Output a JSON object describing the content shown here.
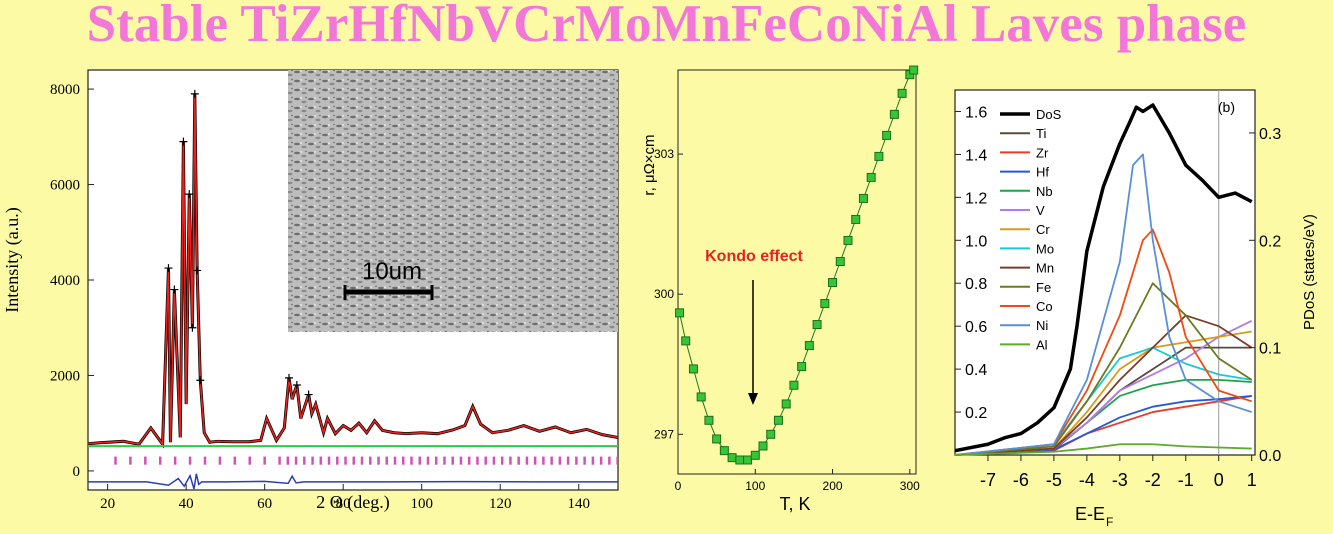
{
  "title": "Stable TiZrHfNbVCrMoMnFeCoNiAl Laves phase",
  "chart_data": [
    {
      "type": "line",
      "xlabel": "2 Θ (deg.)",
      "ylabel": "Intensity (a.u.)",
      "xlim": [
        15,
        150
      ],
      "ylim": [
        -400,
        8400
      ],
      "xticks": [
        "20",
        "40",
        "60",
        "80",
        "100",
        "120",
        "140"
      ],
      "yticks": [
        "0",
        "2000",
        "4000",
        "6000",
        "8000"
      ],
      "inset_scale_label": "10um",
      "series": [
        {
          "kind": "observed-calculated",
          "x": [
            15,
            18,
            24,
            28,
            31,
            34,
            35.5,
            36,
            37,
            38.5,
            39.3,
            40,
            40.8,
            41.6,
            42.2,
            42.8,
            43.6,
            44.6,
            46,
            48,
            52,
            56,
            59,
            60.5,
            63,
            65,
            66.2,
            67,
            68.2,
            69.2,
            71.2,
            72,
            73,
            75,
            76,
            78,
            80,
            82,
            84,
            86,
            88,
            90,
            93,
            96,
            100,
            104,
            108,
            111,
            113,
            115,
            118,
            122,
            126,
            130,
            134,
            138,
            142,
            146,
            150
          ],
          "y": [
            570,
            590,
            620,
            560,
            900,
            560,
            4250,
            600,
            3800,
            700,
            6900,
            1400,
            5800,
            3000,
            7900,
            4200,
            1900,
            800,
            600,
            620,
            610,
            610,
            640,
            1100,
            640,
            900,
            1950,
            1500,
            1800,
            1100,
            1600,
            1200,
            1400,
            800,
            1100,
            780,
            950,
            850,
            1000,
            800,
            1050,
            850,
            800,
            780,
            800,
            780,
            860,
            950,
            1350,
            980,
            800,
            850,
            950,
            830,
            920,
            800,
            870,
            760,
            700
          ]
        },
        {
          "kind": "difference",
          "x": [
            15,
            30,
            35.5,
            38,
            39.5,
            41,
            42,
            42.6,
            43.2,
            44,
            50,
            60,
            66,
            67,
            68,
            70,
            90,
            110,
            130,
            150
          ],
          "y": [
            -230,
            -230,
            -300,
            -160,
            -320,
            -100,
            -380,
            -60,
            -280,
            -230,
            -230,
            -220,
            -260,
            -110,
            -250,
            -230,
            -230,
            -225,
            -230,
            -230
          ]
        }
      ]
    },
    {
      "type": "scatter",
      "xlabel": "T, K",
      "ylabel": "r, μΩ×cm",
      "xlim": [
        0,
        308
      ],
      "ylim": [
        296.15,
        304.8
      ],
      "xticks": [
        "0",
        "100",
        "200",
        "300"
      ],
      "yticks": [
        "297",
        "300",
        "303"
      ],
      "annotation": "Kondo effect",
      "annotation_color": "#e8231e",
      "marker_color": "#35c535",
      "series": [
        {
          "x": [
            2,
            10,
            20,
            30,
            40,
            50,
            60,
            70,
            80,
            90,
            100,
            110,
            120,
            130,
            140,
            150,
            160,
            170,
            180,
            190,
            200,
            210,
            220,
            230,
            240,
            250,
            260,
            270,
            280,
            290,
            300,
            305
          ],
          "y": [
            299.6,
            299.0,
            298.4,
            297.8,
            297.3,
            296.9,
            296.65,
            296.5,
            296.45,
            296.45,
            296.55,
            296.75,
            297.0,
            297.3,
            297.65,
            298.05,
            298.45,
            298.9,
            299.35,
            299.8,
            300.25,
            300.7,
            301.15,
            301.6,
            302.05,
            302.5,
            302.95,
            303.4,
            303.85,
            304.3,
            304.7,
            304.8
          ]
        }
      ]
    },
    {
      "type": "line",
      "xlabel": "E-E",
      "xlabel_sub": "F",
      "ylabel_right": "PDoS (states/eV)",
      "panel_label": "(b)",
      "xlim": [
        -8,
        1.1
      ],
      "ylim_left": [
        0,
        1.7
      ],
      "ylim_right": [
        0,
        0.34
      ],
      "xticks": [
        "-7",
        "-6",
        "-5",
        "-4",
        "-3",
        "-2",
        "-1",
        "0",
        "1"
      ],
      "yticks_left": [
        "0.2",
        "0.4",
        "0.6",
        "0.8",
        "1.0",
        "1.2",
        "1.4",
        "1.6"
      ],
      "yticks_right": [
        "0.0",
        "0.1",
        "0.2",
        "0.3"
      ],
      "series": [
        {
          "name": "DoS",
          "color": "#000000",
          "axis": "left",
          "x": [
            -8,
            -7,
            -6.5,
            -6,
            -5.5,
            -5,
            -4.5,
            -4.3,
            -4,
            -3.5,
            -3,
            -2.7,
            -2.5,
            -2.3,
            -2,
            -1.5,
            -1,
            -0.5,
            0,
            0.5,
            1
          ],
          "y": [
            0.02,
            0.05,
            0.08,
            0.1,
            0.15,
            0.22,
            0.4,
            0.6,
            0.95,
            1.25,
            1.45,
            1.55,
            1.62,
            1.6,
            1.63,
            1.5,
            1.35,
            1.28,
            1.2,
            1.22,
            1.18
          ]
        },
        {
          "name": "Ti",
          "color": "#5a4a3a",
          "axis": "right",
          "x": [
            -8,
            -5,
            -4,
            -3,
            -2,
            -1,
            0,
            1
          ],
          "y": [
            0,
            0.005,
            0.03,
            0.06,
            0.08,
            0.1,
            0.1,
            0.1
          ]
        },
        {
          "name": "Zr",
          "color": "#ec3a2a",
          "axis": "right",
          "x": [
            -8,
            -5,
            -4,
            -3,
            -2,
            -1,
            0,
            1
          ],
          "y": [
            0,
            0.004,
            0.02,
            0.03,
            0.04,
            0.045,
            0.05,
            0.055
          ]
        },
        {
          "name": "Hf",
          "color": "#2459d8",
          "axis": "right",
          "x": [
            -8,
            -5,
            -4,
            -3,
            -2,
            -1,
            0,
            1
          ],
          "y": [
            0,
            0.005,
            0.02,
            0.035,
            0.045,
            0.05,
            0.052,
            0.055
          ]
        },
        {
          "name": "Nb",
          "color": "#1fa34a",
          "axis": "right",
          "x": [
            -8,
            -5,
            -4,
            -3,
            -2,
            -1,
            0,
            1
          ],
          "y": [
            0,
            0.006,
            0.03,
            0.055,
            0.065,
            0.07,
            0.07,
            0.068
          ]
        },
        {
          "name": "V",
          "color": "#b17be8",
          "axis": "right",
          "x": [
            -8,
            -5,
            -4,
            -3,
            -2,
            -1,
            0,
            1
          ],
          "y": [
            0,
            0.006,
            0.03,
            0.06,
            0.075,
            0.09,
            0.11,
            0.125
          ]
        },
        {
          "name": "Cr",
          "color": "#d99a18",
          "axis": "right",
          "x": [
            -8,
            -5,
            -4,
            -3,
            -2,
            -1,
            0,
            1
          ],
          "y": [
            0,
            0.006,
            0.04,
            0.08,
            0.1,
            0.105,
            0.11,
            0.115
          ]
        },
        {
          "name": "Mo",
          "color": "#19c9d6",
          "axis": "right",
          "x": [
            -8,
            -5,
            -4,
            -3,
            -2,
            -1,
            0,
            1
          ],
          "y": [
            0,
            0.01,
            0.05,
            0.09,
            0.1,
            0.085,
            0.075,
            0.07
          ]
        },
        {
          "name": "Mn",
          "color": "#7a3e2a",
          "axis": "right",
          "x": [
            -8,
            -5,
            -4,
            -3,
            -2,
            -1,
            0,
            1
          ],
          "y": [
            0,
            0.006,
            0.035,
            0.07,
            0.1,
            0.13,
            0.12,
            0.1
          ]
        },
        {
          "name": "Fe",
          "color": "#6b7a1e",
          "axis": "right",
          "x": [
            -8,
            -5,
            -4,
            -3,
            -2,
            -1,
            0,
            1
          ],
          "y": [
            0,
            0.008,
            0.05,
            0.1,
            0.16,
            0.13,
            0.09,
            0.07
          ]
        },
        {
          "name": "Co",
          "color": "#f04a10",
          "axis": "right",
          "x": [
            -8,
            -5,
            -4,
            -3,
            -2.3,
            -2,
            -1.5,
            -1,
            0,
            1
          ],
          "y": [
            0,
            0.01,
            0.06,
            0.13,
            0.2,
            0.21,
            0.17,
            0.11,
            0.06,
            0.05
          ]
        },
        {
          "name": "Ni",
          "color": "#5a8fd6",
          "axis": "right",
          "x": [
            -8,
            -5,
            -4,
            -3,
            -2.6,
            -2.3,
            -2,
            -1.5,
            -1,
            0,
            1
          ],
          "y": [
            0,
            0.01,
            0.07,
            0.18,
            0.27,
            0.28,
            0.2,
            0.11,
            0.07,
            0.05,
            0.04
          ]
        },
        {
          "name": "Al",
          "color": "#5cab2a",
          "axis": "right",
          "x": [
            -8,
            -5,
            -4,
            -3,
            -2,
            -1,
            0,
            1
          ],
          "y": [
            0,
            0.003,
            0.006,
            0.01,
            0.01,
            0.008,
            0.007,
            0.006
          ]
        }
      ]
    }
  ]
}
